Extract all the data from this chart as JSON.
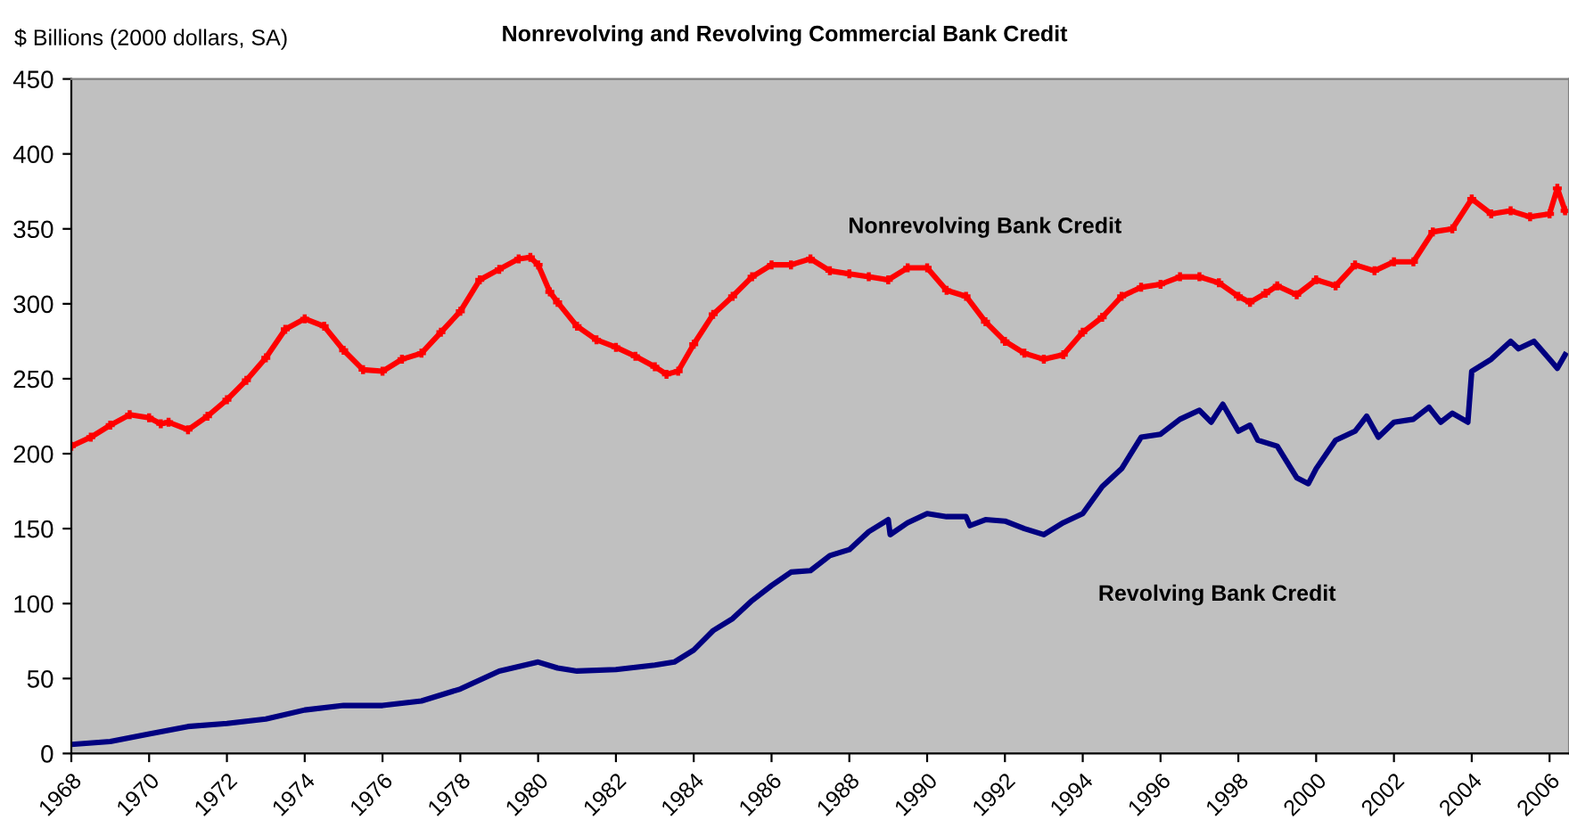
{
  "chart_data": {
    "type": "line",
    "title": "Nonrevolving and Revolving Commercial Bank Credit",
    "ylabel": "$ Billions (2000 dollars, SA)",
    "xlim": [
      1968,
      2006.5
    ],
    "xticks": [
      1968,
      1970,
      1972,
      1974,
      1976,
      1978,
      1980,
      1982,
      1984,
      1986,
      1988,
      1990,
      1992,
      1994,
      1996,
      1998,
      2000,
      2002,
      2004,
      2006
    ],
    "ylim": [
      0,
      450
    ],
    "yticks": [
      0,
      50,
      100,
      150,
      200,
      250,
      300,
      350,
      400,
      450
    ],
    "grid": false,
    "legend": false,
    "line_style": "solid",
    "annotations": [
      "Nonrevolving Bank Credit",
      "Revolving Bank Credit"
    ],
    "series": [
      {
        "color": "#ff0000",
        "marker": "cross",
        "x": [
          1968,
          1968.5,
          1969,
          1969.5,
          1970,
          1970.3,
          1970.5,
          1971,
          1971.5,
          1972,
          1972.5,
          1973,
          1973.5,
          1974,
          1974.5,
          1975,
          1975.5,
          1976,
          1976.5,
          1977,
          1977.5,
          1978,
          1978.5,
          1979,
          1979.5,
          1979.8,
          1980,
          1980.3,
          1980.5,
          1981,
          1981.5,
          1982,
          1982.5,
          1983,
          1983.3,
          1983.6,
          1984,
          1984.5,
          1985,
          1985.5,
          1986,
          1986.5,
          1987,
          1987.5,
          1988,
          1988.5,
          1989,
          1989.5,
          1990,
          1990.5,
          1991,
          1991.5,
          1992,
          1992.5,
          1993,
          1993.5,
          1994,
          1994.5,
          1995,
          1995.5,
          1996,
          1996.5,
          1997,
          1997.5,
          1998,
          1998.3,
          1998.7,
          1999,
          1999.5,
          2000,
          2000.5,
          2001,
          2001.5,
          2002,
          2002.5,
          2003,
          2003.5,
          2004,
          2004.5,
          2005,
          2005.5,
          2006,
          2006.2,
          2006.4
        ],
        "values": [
          205,
          211,
          219,
          226,
          224,
          220,
          221,
          216,
          225,
          236,
          249,
          264,
          283,
          290,
          285,
          269,
          256,
          255,
          263,
          267,
          281,
          295,
          316,
          323,
          330,
          331,
          326,
          308,
          301,
          285,
          276,
          271,
          265,
          258,
          253,
          255,
          273,
          293,
          305,
          318,
          326,
          326,
          330,
          322,
          320,
          318,
          316,
          324,
          324,
          309,
          305,
          288,
          275,
          267,
          263,
          266,
          281,
          291,
          305,
          311,
          313,
          318,
          318,
          314,
          305,
          301,
          307,
          312,
          306,
          316,
          312,
          326,
          322,
          328,
          328,
          348,
          350,
          370,
          360,
          362,
          358,
          360,
          377,
          362
        ]
      },
      {
        "color": "#000080",
        "marker": "none",
        "x": [
          1968,
          1969,
          1970,
          1971,
          1972,
          1973,
          1974,
          1975,
          1976,
          1977,
          1978,
          1979,
          1980,
          1980.5,
          1981,
          1982,
          1983,
          1983.5,
          1984,
          1984.5,
          1985,
          1985.5,
          1986,
          1986.5,
          1987,
          1987.5,
          1988,
          1988.5,
          1989,
          1989.05,
          1989.5,
          1990,
          1990.5,
          1991,
          1991.1,
          1991.5,
          1992,
          1992.5,
          1993,
          1993.5,
          1994,
          1994.5,
          1995,
          1995.5,
          1996,
          1996.5,
          1997,
          1997.3,
          1997.6,
          1998,
          1998.3,
          1998.5,
          1999,
          1999.5,
          1999.8,
          2000,
          2000.5,
          2001,
          2001.3,
          2001.6,
          2002,
          2002.5,
          2002.9,
          2003.2,
          2003.5,
          2003.9,
          2004,
          2004.5,
          2005,
          2005.2,
          2005.6,
          2006,
          2006.2,
          2006.4
        ],
        "values": [
          6,
          8,
          13,
          18,
          20,
          23,
          29,
          32,
          32,
          35,
          43,
          55,
          61,
          57,
          55,
          56,
          59,
          61,
          69,
          82,
          90,
          102,
          112,
          121,
          122,
          132,
          136,
          148,
          156,
          146,
          154,
          160,
          158,
          158,
          152,
          156,
          155,
          150,
          146,
          154,
          160,
          178,
          190,
          211,
          213,
          223,
          229,
          221,
          233,
          215,
          219,
          209,
          205,
          184,
          180,
          190,
          209,
          215,
          225,
          211,
          221,
          223,
          231,
          221,
          227,
          221,
          255,
          263,
          275,
          270,
          275,
          263,
          257,
          266
        ]
      }
    ]
  }
}
